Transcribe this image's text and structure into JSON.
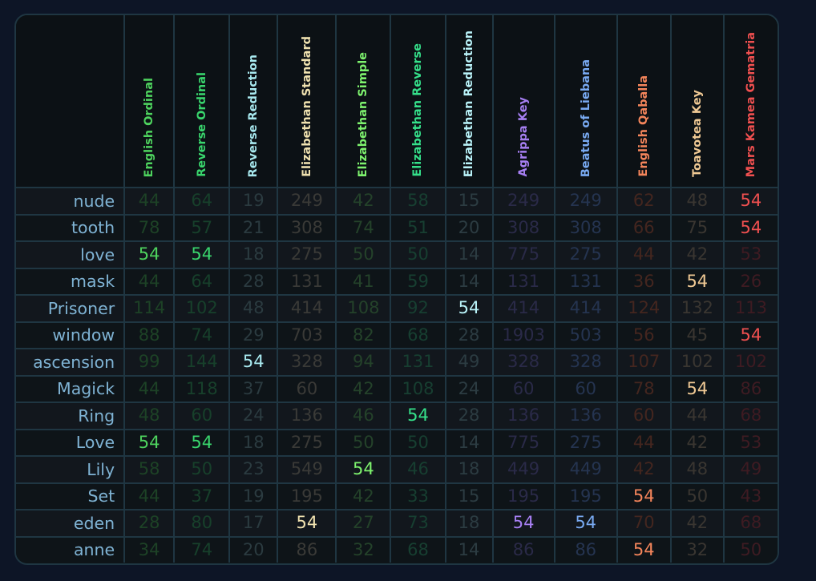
{
  "columns": [
    {
      "label": "English Ordinal",
      "color": "#4ed35e",
      "dim": "#1d4226"
    },
    {
      "label": "Reverse Ordinal",
      "color": "#39d66d",
      "dim": "#17402b"
    },
    {
      "label": "Reverse Reduction",
      "color": "#a8e9ef",
      "dim": "#2b3b40"
    },
    {
      "label": "Elizabethan Standard",
      "color": "#f0e2b0",
      "dim": "#3a3a37"
    },
    {
      "label": "Elizabethan Simple",
      "color": "#7ef36e",
      "dim": "#24422a"
    },
    {
      "label": "Elizabethan Reverse",
      "color": "#35e08a",
      "dim": "#173f31"
    },
    {
      "label": "Elizabethan Reduction",
      "color": "#b9f2f8",
      "dim": "#2c3c42"
    },
    {
      "label": "Agrippa Key",
      "color": "#a67ff2",
      "dim": "#2a2a48"
    },
    {
      "label": "Beatus of Liebana",
      "color": "#79aaf2",
      "dim": "#253450"
    },
    {
      "label": "English Qaballa",
      "color": "#f4855b",
      "dim": "#44261f"
    },
    {
      "label": "Toavotea Key",
      "color": "#f0c994",
      "dim": "#3a3631"
    },
    {
      "label": "Mars Kamea Gematria",
      "color": "#f05050",
      "dim": "#3e1b22"
    }
  ],
  "rows": [
    {
      "word": "nude",
      "values": [
        "44",
        "64",
        "19",
        "249",
        "42",
        "58",
        "15",
        "249",
        "249",
        "62",
        "48",
        "54"
      ]
    },
    {
      "word": "tooth",
      "values": [
        "78",
        "57",
        "21",
        "308",
        "74",
        "51",
        "20",
        "308",
        "308",
        "66",
        "75",
        "54"
      ]
    },
    {
      "word": "love",
      "values": [
        "54",
        "54",
        "18",
        "275",
        "50",
        "50",
        "14",
        "775",
        "275",
        "44",
        "42",
        "53"
      ]
    },
    {
      "word": "mask",
      "values": [
        "44",
        "64",
        "28",
        "131",
        "41",
        "59",
        "14",
        "131",
        "131",
        "36",
        "54",
        "26"
      ]
    },
    {
      "word": "Prisoner",
      "values": [
        "114",
        "102",
        "48",
        "414",
        "108",
        "92",
        "54",
        "414",
        "414",
        "124",
        "132",
        "113"
      ]
    },
    {
      "word": "window",
      "values": [
        "88",
        "74",
        "29",
        "703",
        "82",
        "68",
        "28",
        "1903",
        "503",
        "56",
        "45",
        "54"
      ]
    },
    {
      "word": "ascension",
      "values": [
        "99",
        "144",
        "54",
        "328",
        "94",
        "131",
        "49",
        "328",
        "328",
        "107",
        "102",
        "102"
      ]
    },
    {
      "word": "Magick",
      "values": [
        "44",
        "118",
        "37",
        "60",
        "42",
        "108",
        "24",
        "60",
        "60",
        "78",
        "54",
        "86"
      ]
    },
    {
      "word": "Ring",
      "values": [
        "48",
        "60",
        "24",
        "136",
        "46",
        "54",
        "28",
        "136",
        "136",
        "60",
        "44",
        "68"
      ]
    },
    {
      "word": "Love",
      "values": [
        "54",
        "54",
        "18",
        "275",
        "50",
        "50",
        "14",
        "775",
        "275",
        "44",
        "42",
        "53"
      ]
    },
    {
      "word": "Lily",
      "values": [
        "58",
        "50",
        "23",
        "549",
        "54",
        "46",
        "18",
        "449",
        "449",
        "42",
        "48",
        "49"
      ]
    },
    {
      "word": "Set",
      "values": [
        "44",
        "37",
        "19",
        "195",
        "42",
        "33",
        "15",
        "195",
        "195",
        "54",
        "50",
        "43"
      ]
    },
    {
      "word": "eden",
      "values": [
        "28",
        "80",
        "17",
        "54",
        "27",
        "73",
        "18",
        "54",
        "54",
        "70",
        "42",
        "68"
      ]
    },
    {
      "word": "anne",
      "values": [
        "34",
        "74",
        "20",
        "86",
        "32",
        "68",
        "14",
        "86",
        "86",
        "54",
        "32",
        "50"
      ]
    }
  ],
  "highlight_value": "54"
}
